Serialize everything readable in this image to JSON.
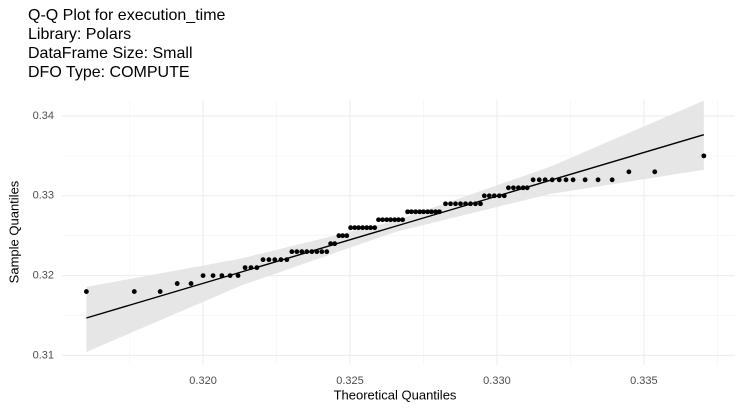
{
  "chart_data": {
    "type": "scatter",
    "title": [
      "Q-Q Plot for execution_time",
      "Library: Polars",
      "DataFrame Size: Small",
      "DFO Type: COMPUTE"
    ],
    "x_label": "Theoretical Quantiles",
    "y_label": "Sample Quantiles",
    "color": "#000000",
    "x": [
      0.31603,
      0.31766,
      0.31854,
      0.31912,
      0.31959,
      0.32,
      0.32034,
      0.32064,
      0.32092,
      0.32119,
      0.32143,
      0.32163,
      0.32183,
      0.32204,
      0.32224,
      0.32244,
      0.32265,
      0.32285,
      0.32302,
      0.32319,
      0.32336,
      0.32353,
      0.3237,
      0.32387,
      0.32404,
      0.32421,
      0.32434,
      0.32448,
      0.32462,
      0.32475,
      0.32489,
      0.32502,
      0.32516,
      0.32529,
      0.32543,
      0.32557,
      0.3257,
      0.32584,
      0.32597,
      0.32611,
      0.32625,
      0.32638,
      0.32652,
      0.32665,
      0.32679,
      0.32696,
      0.32709,
      0.32723,
      0.32737,
      0.3275,
      0.32764,
      0.32777,
      0.32791,
      0.32804,
      0.32825,
      0.32842,
      0.32859,
      0.32876,
      0.32893,
      0.3291,
      0.32927,
      0.32944,
      0.32957,
      0.32974,
      0.32991,
      0.33008,
      0.33025,
      0.33039,
      0.33056,
      0.33073,
      0.33089,
      0.33103,
      0.33123,
      0.33144,
      0.33164,
      0.33188,
      0.33212,
      0.33235,
      0.33259,
      0.333,
      0.33344,
      0.33392,
      0.33449,
      0.33537,
      0.33704
    ],
    "values": [
      0.318,
      0.318,
      0.318,
      0.319,
      0.319,
      0.32,
      0.32,
      0.32,
      0.32,
      0.32,
      0.321,
      0.321,
      0.321,
      0.322,
      0.322,
      0.322,
      0.322,
      0.322,
      0.323,
      0.323,
      0.323,
      0.323,
      0.323,
      0.323,
      0.323,
      0.323,
      0.324,
      0.324,
      0.325,
      0.325,
      0.325,
      0.326,
      0.326,
      0.326,
      0.326,
      0.326,
      0.326,
      0.326,
      0.327,
      0.327,
      0.327,
      0.327,
      0.327,
      0.327,
      0.327,
      0.328,
      0.328,
      0.328,
      0.328,
      0.328,
      0.328,
      0.328,
      0.328,
      0.328,
      0.329,
      0.329,
      0.329,
      0.329,
      0.329,
      0.329,
      0.329,
      0.329,
      0.33,
      0.33,
      0.33,
      0.33,
      0.33,
      0.331,
      0.331,
      0.331,
      0.331,
      0.331,
      0.332,
      0.332,
      0.332,
      0.332,
      0.332,
      0.332,
      0.332,
      0.332,
      0.332,
      0.332,
      0.333,
      0.333,
      0.335
    ],
    "reference_line": {
      "x": [
        0.31603,
        0.33704
      ],
      "y": [
        0.31469,
        0.33765
      ],
      "color": "#000000"
    },
    "band": {
      "x": [
        0.31603,
        0.32128,
        0.32654,
        0.33179,
        0.33704
      ],
      "lower": [
        0.31043,
        0.31873,
        0.32547,
        0.33021,
        0.33326
      ],
      "upper": [
        0.31858,
        0.32213,
        0.32687,
        0.33361,
        0.34192
      ],
      "color": "#e6e6e6"
    },
    "xlim": [
      0.3152,
      0.3381
    ],
    "ylim": [
      0.3088,
      0.342
    ],
    "xticks": [
      {
        "value": 0.32,
        "label": "0.320"
      },
      0.325,
      {
        "value": 0.33,
        "label": "0.330"
      },
      0.335
    ],
    "yticks": [
      0.31,
      0.32,
      0.33,
      0.34
    ],
    "grid": true
  }
}
